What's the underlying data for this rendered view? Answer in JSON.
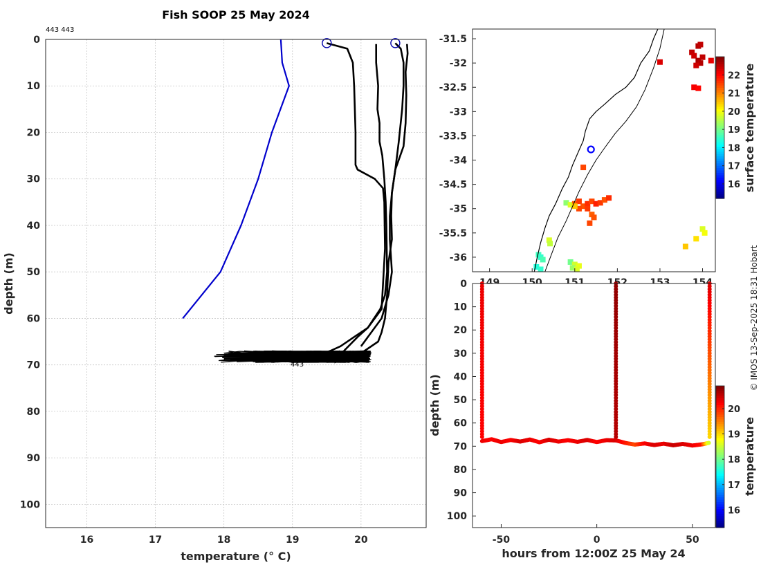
{
  "header": {
    "title": "Fish SOOP 25 May 2024",
    "id_note": "443 443",
    "credit": "© IMOS 13-Sep-2025 18:31 Hobart"
  },
  "chart_data": [
    {
      "type": "line",
      "panel": "profile",
      "title": "Fish SOOP 25 May 2024",
      "xlabel": "temperature (° C)",
      "ylabel": "depth (m)",
      "xlim": [
        15.4,
        20.95
      ],
      "ylim": [
        105,
        0
      ],
      "xticks": [
        "16",
        "17",
        "18",
        "19",
        "20"
      ],
      "yticks": [
        "0",
        "10",
        "20",
        "30",
        "40",
        "50",
        "60",
        "70",
        "80",
        "90",
        "100"
      ],
      "grid": true,
      "annotation": "443",
      "series": [
        {
          "color": "#0000cc",
          "x": [
            18.83,
            18.85,
            18.95,
            18.7,
            18.5,
            18.25,
            17.95,
            17.4
          ],
          "y": [
            0,
            5,
            10,
            20,
            30,
            40,
            50,
            60
          ]
        },
        {
          "color": "#000000",
          "x": [
            19.5,
            19.8,
            19.88,
            19.9,
            19.92,
            19.92,
            19.95,
            20.2,
            20.32,
            20.34,
            20.35,
            20.3,
            20.1,
            19.9,
            19.7,
            19.55,
            19.25
          ],
          "y": [
            0.8,
            2,
            5,
            10,
            20,
            27,
            28,
            30,
            32,
            35,
            45,
            58,
            62,
            64,
            66,
            67,
            68.5
          ]
        },
        {
          "color": "#000000",
          "x": [
            20.22,
            20.22,
            20.25,
            20.24,
            20.27,
            20.27,
            20.31,
            20.34,
            20.36,
            20.37,
            20.38,
            20.35,
            20.28,
            20.1,
            19.95,
            19.75
          ],
          "y": [
            1,
            5,
            10,
            15,
            18,
            22,
            25,
            30,
            35,
            40,
            50,
            55,
            58,
            62,
            64,
            67
          ]
        },
        {
          "color": "#000000",
          "x": [
            20.5,
            20.58,
            20.62,
            20.62,
            20.6,
            20.55,
            20.5,
            20.45,
            20.42,
            20.42,
            20.45,
            20.4,
            20.3,
            20.15,
            20.0
          ],
          "y": [
            0.8,
            2,
            5,
            10,
            15,
            22,
            28,
            33,
            38,
            43,
            50,
            55,
            60,
            63,
            66
          ]
        },
        {
          "color": "#000000",
          "x": [
            20.67,
            20.68,
            20.65,
            20.66,
            20.65,
            20.62,
            20.5,
            20.45,
            20.44,
            20.45,
            20.4,
            20.38,
            20.35,
            20.3,
            20.25,
            20.05,
            19.9
          ],
          "y": [
            1,
            3,
            7,
            12,
            18,
            23,
            28,
            33,
            38,
            43,
            48,
            55,
            60,
            63,
            65,
            67,
            68
          ]
        }
      ],
      "scatter_band": {
        "color": "#000000",
        "x_range": [
          17.85,
          20.15
        ],
        "y_range": [
          67,
          69.5
        ]
      },
      "markers": [
        {
          "x": 19.5,
          "y": 0.8,
          "shape": "circle",
          "color": "#0000aa"
        },
        {
          "x": 20.5,
          "y": 0.8,
          "shape": "circle",
          "color": "#0000aa"
        }
      ]
    },
    {
      "type": "heatmap",
      "panel": "map",
      "title": "",
      "xlim": [
        148.6,
        154.3
      ],
      "ylim": [
        -36.3,
        -31.3
      ],
      "xticks": [
        "149",
        "150",
        "151",
        "152",
        "153",
        "154"
      ],
      "yticks": [
        "-31.5",
        "-32",
        "-32.5",
        "-33",
        "-33.5",
        "-34",
        "-34.5",
        "-35",
        "-35.5",
        "-36"
      ],
      "colorbar_label": "surface temperature",
      "colorbar_range": [
        15.2,
        23.0
      ],
      "colorbar_ticks": [
        "16",
        "17",
        "18",
        "19",
        "20",
        "21",
        "22"
      ],
      "coastline": {
        "lon": [
          150.05,
          150.12,
          150.2,
          150.3,
          150.4,
          150.55,
          150.7,
          150.85,
          150.95,
          151.1,
          151.2,
          151.25,
          151.35,
          151.5,
          151.7,
          151.95,
          152.2,
          152.4,
          152.55,
          152.75,
          152.85,
          152.95
        ],
        "lat": [
          -36.3,
          -36.0,
          -35.7,
          -35.4,
          -35.15,
          -34.9,
          -34.6,
          -34.35,
          -34.1,
          -33.8,
          -33.6,
          -33.4,
          -33.15,
          -33.0,
          -32.85,
          -32.65,
          -32.5,
          -32.3,
          -32.0,
          -31.75,
          -31.5,
          -31.3
        ]
      },
      "isobath": {
        "lon": [
          150.3,
          150.45,
          150.6,
          150.8,
          150.95,
          151.1,
          151.3,
          151.5,
          151.7,
          151.95,
          152.2,
          152.45,
          152.65,
          152.85,
          153.0,
          153.1
        ],
        "lat": [
          -36.3,
          -35.95,
          -35.6,
          -35.25,
          -34.95,
          -34.65,
          -34.3,
          -34.0,
          -33.75,
          -33.45,
          -33.2,
          -32.9,
          -32.55,
          -32.1,
          -31.7,
          -31.3
        ]
      },
      "current_position": {
        "lon": 151.38,
        "lat": -33.78,
        "shape": "circle",
        "color": "#0000ff"
      },
      "sst_pixels": [
        {
          "lon": 153.9,
          "lat": -31.65,
          "value": 22.6
        },
        {
          "lon": 153.95,
          "lat": -31.62,
          "value": 22.5
        },
        {
          "lon": 153.75,
          "lat": -31.78,
          "value": 22.5
        },
        {
          "lon": 153.8,
          "lat": -31.85,
          "value": 22.4
        },
        {
          "lon": 153.9,
          "lat": -31.95,
          "value": 22.7
        },
        {
          "lon": 153.95,
          "lat": -32.0,
          "value": 22.6
        },
        {
          "lon": 154.0,
          "lat": -31.88,
          "value": 22.5
        },
        {
          "lon": 153.85,
          "lat": -32.05,
          "value": 22.4
        },
        {
          "lon": 153.0,
          "lat": -31.98,
          "value": 22.3
        },
        {
          "lon": 153.8,
          "lat": -32.5,
          "value": 22.1
        },
        {
          "lon": 153.9,
          "lat": -32.52,
          "value": 22.0
        },
        {
          "lon": 154.2,
          "lat": -31.95,
          "value": 22.2
        },
        {
          "lon": 151.2,
          "lat": -34.15,
          "value": 21.5
        },
        {
          "lon": 150.8,
          "lat": -34.88,
          "value": 19.2
        },
        {
          "lon": 150.9,
          "lat": -34.92,
          "value": 19.8
        },
        {
          "lon": 151.0,
          "lat": -34.9,
          "value": 21.3
        },
        {
          "lon": 151.1,
          "lat": -34.85,
          "value": 21.6
        },
        {
          "lon": 151.2,
          "lat": -34.95,
          "value": 21.4
        },
        {
          "lon": 151.3,
          "lat": -34.9,
          "value": 21.7
        },
        {
          "lon": 151.4,
          "lat": -34.85,
          "value": 21.5
        },
        {
          "lon": 151.5,
          "lat": -34.9,
          "value": 21.8
        },
        {
          "lon": 151.6,
          "lat": -34.88,
          "value": 21.6
        },
        {
          "lon": 151.7,
          "lat": -34.82,
          "value": 21.4
        },
        {
          "lon": 151.8,
          "lat": -34.78,
          "value": 21.7
        },
        {
          "lon": 151.1,
          "lat": -35.0,
          "value": 21.5
        },
        {
          "lon": 151.3,
          "lat": -35.0,
          "value": 21.6
        },
        {
          "lon": 151.4,
          "lat": -35.12,
          "value": 21.3
        },
        {
          "lon": 151.45,
          "lat": -35.18,
          "value": 21.4
        },
        {
          "lon": 151.35,
          "lat": -35.3,
          "value": 21.5
        },
        {
          "lon": 151.0,
          "lat": -34.95,
          "value": 20.5
        },
        {
          "lon": 150.4,
          "lat": -35.65,
          "value": 19.8
        },
        {
          "lon": 150.42,
          "lat": -35.72,
          "value": 19.6
        },
        {
          "lon": 150.15,
          "lat": -35.95,
          "value": 18.6
        },
        {
          "lon": 150.2,
          "lat": -36.0,
          "value": 18.5
        },
        {
          "lon": 150.25,
          "lat": -36.05,
          "value": 18.7
        },
        {
          "lon": 150.1,
          "lat": -36.2,
          "value": 18.4
        },
        {
          "lon": 150.2,
          "lat": -36.25,
          "value": 18.5
        },
        {
          "lon": 150.9,
          "lat": -36.1,
          "value": 19.0
        },
        {
          "lon": 151.0,
          "lat": -36.15,
          "value": 19.7
        },
        {
          "lon": 151.1,
          "lat": -36.18,
          "value": 19.9
        },
        {
          "lon": 150.95,
          "lat": -36.22,
          "value": 19.3
        },
        {
          "lon": 151.05,
          "lat": -36.25,
          "value": 19.8
        },
        {
          "lon": 154.0,
          "lat": -35.42,
          "value": 19.8
        },
        {
          "lon": 154.05,
          "lat": -35.5,
          "value": 20.0
        },
        {
          "lon": 153.85,
          "lat": -35.62,
          "value": 20.3
        },
        {
          "lon": 153.6,
          "lat": -35.78,
          "value": 20.5
        }
      ]
    },
    {
      "type": "scatter",
      "panel": "timeseries",
      "title": "",
      "xlabel": "hours from 12:00Z 25 May 24",
      "ylabel": "depth (m)",
      "xlim": [
        -65,
        62
      ],
      "ylim": [
        105,
        0
      ],
      "xticks": [
        "-50",
        "0",
        "50"
      ],
      "yticks": [
        "0",
        "10",
        "20",
        "30",
        "40",
        "50",
        "60",
        "70",
        "80",
        "90",
        "100"
      ],
      "colorbar_label": "temperature",
      "colorbar_range": [
        15.3,
        20.9
      ],
      "colorbar_ticks": [
        "16",
        "17",
        "18",
        "19",
        "20"
      ],
      "descents": [
        {
          "t": -60,
          "temp_surface": 20.3,
          "temp_bottom": 20.2
        },
        {
          "t": 10,
          "temp_surface": 20.8,
          "temp_bottom": 20.6
        },
        {
          "t": 59,
          "temp_surface": 20.4,
          "temp_bottom": 19.0
        }
      ],
      "bottom_track": {
        "t": [
          -60,
          -55,
          -50,
          -45,
          -40,
          -35,
          -30,
          -25,
          -20,
          -15,
          -10,
          -5,
          0,
          5,
          10,
          15,
          20,
          25,
          30,
          35,
          40,
          45,
          50,
          55,
          59
        ],
        "depth": [
          67.8,
          67.0,
          68.2,
          67.3,
          68.0,
          67.1,
          68.3,
          67.2,
          68.0,
          67.4,
          68.1,
          67.3,
          68.2,
          67.4,
          67.5,
          68.6,
          69.3,
          68.8,
          69.5,
          68.9,
          69.6,
          69.0,
          69.7,
          69.2,
          68.5
        ],
        "temp": [
          20.3,
          20.2,
          20.3,
          20.2,
          20.4,
          20.3,
          20.2,
          20.4,
          20.3,
          20.2,
          20.3,
          20.4,
          20.2,
          20.3,
          20.4,
          20.1,
          19.8,
          20.2,
          20.4,
          20.3,
          20.5,
          20.4,
          20.3,
          20.1,
          18.4
        ]
      }
    }
  ]
}
